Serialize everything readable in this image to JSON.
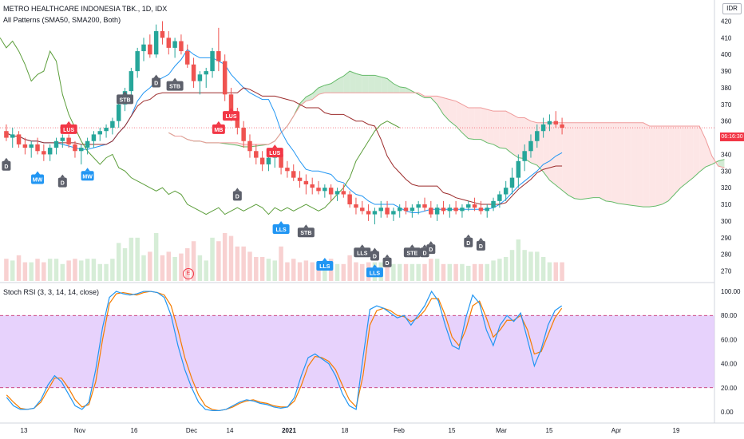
{
  "header": {
    "title": "METRO HEALTHCARE INDONESIA TBK., 1D, IDX",
    "indicator": "All Patterns (SMA50, SMA200, Both)",
    "rsi_title": "Stoch RSI (3, 3, 14, 14, close)"
  },
  "currency": "IDR",
  "last_price_label": "06:16:30",
  "earnings_label": "E",
  "colors": {
    "up": "#26a69a",
    "down": "#ef5350",
    "bg": "#ffffff",
    "cloud_bull": "#4caf50",
    "cloud_bear": "#f8b7b7",
    "tenkan": "#2196f3",
    "kijun": "#9c2b2b",
    "lagging": "#5c9e3b",
    "rsi_k": "#2196f3",
    "rsi_d": "#f57c00",
    "rsi_band": "#e1c7fb",
    "sig_bull": "#2196f3",
    "sig_bear": "#f23645",
    "sig_neutral": "#5d606b"
  },
  "chart_data": [
    {
      "type": "candlestick",
      "y_ticks": [
        270,
        280,
        290,
        300,
        310,
        320,
        330,
        340,
        350,
        360,
        370,
        380,
        390,
        400,
        410,
        420
      ],
      "ylim": [
        264,
        426
      ],
      "x_ticks": [
        "13",
        "Nov",
        "16",
        "Dec",
        "14",
        "2021",
        "18",
        "Feb",
        "15",
        "Mar",
        "15",
        "Apr",
        "19"
      ],
      "candles": [
        [
          354,
          358,
          348,
          350
        ],
        [
          350,
          356,
          344,
          352
        ],
        [
          352,
          354,
          344,
          346
        ],
        [
          346,
          350,
          340,
          344
        ],
        [
          344,
          348,
          338,
          346
        ],
        [
          346,
          350,
          340,
          342
        ],
        [
          342,
          346,
          336,
          340
        ],
        [
          340,
          346,
          336,
          344
        ],
        [
          344,
          350,
          340,
          348
        ],
        [
          348,
          352,
          344,
          350
        ],
        [
          350,
          352,
          344,
          346
        ],
        [
          346,
          348,
          338,
          342
        ],
        [
          342,
          346,
          334,
          344
        ],
        [
          344,
          350,
          340,
          348
        ],
        [
          348,
          354,
          344,
          352
        ],
        [
          352,
          356,
          348,
          354
        ],
        [
          354,
          358,
          350,
          356
        ],
        [
          356,
          362,
          352,
          360
        ],
        [
          360,
          372,
          356,
          370
        ],
        [
          370,
          380,
          366,
          378
        ],
        [
          378,
          392,
          374,
          390
        ],
        [
          390,
          404,
          386,
          402
        ],
        [
          402,
          410,
          396,
          406
        ],
        [
          406,
          412,
          398,
          400
        ],
        [
          400,
          418,
          398,
          414
        ],
        [
          414,
          420,
          406,
          410
        ],
        [
          410,
          414,
          400,
          404
        ],
        [
          404,
          410,
          398,
          408
        ],
        [
          408,
          412,
          400,
          402
        ],
        [
          402,
          406,
          392,
          394
        ],
        [
          394,
          398,
          380,
          384
        ],
        [
          384,
          390,
          376,
          388
        ],
        [
          388,
          392,
          380,
          390
        ],
        [
          390,
          404,
          386,
          402
        ],
        [
          402,
          416,
          390,
          396
        ],
        [
          396,
          400,
          372,
          376
        ],
        [
          376,
          380,
          360,
          364
        ],
        [
          364,
          368,
          352,
          356
        ],
        [
          356,
          360,
          344,
          348
        ],
        [
          348,
          352,
          338,
          342
        ],
        [
          342,
          346,
          334,
          338
        ],
        [
          338,
          342,
          330,
          334
        ],
        [
          334,
          340,
          330,
          338
        ],
        [
          338,
          344,
          332,
          340
        ],
        [
          340,
          344,
          328,
          332
        ],
        [
          332,
          336,
          326,
          330
        ],
        [
          330,
          334,
          324,
          326
        ],
        [
          326,
          330,
          320,
          324
        ],
        [
          324,
          328,
          316,
          322
        ],
        [
          322,
          326,
          316,
          320
        ],
        [
          320,
          324,
          316,
          318
        ],
        [
          318,
          322,
          314,
          320
        ],
        [
          320,
          322,
          312,
          316
        ],
        [
          316,
          320,
          312,
          318
        ],
        [
          318,
          322,
          314,
          316
        ],
        [
          316,
          318,
          308,
          310
        ],
        [
          310,
          314,
          304,
          308
        ],
        [
          308,
          312,
          304,
          306
        ],
        [
          306,
          310,
          300,
          304
        ],
        [
          304,
          308,
          298,
          306
        ],
        [
          306,
          312,
          302,
          308
        ],
        [
          308,
          312,
          302,
          304
        ],
        [
          304,
          308,
          300,
          306
        ],
        [
          306,
          310,
          302,
          308
        ],
        [
          308,
          312,
          304,
          306
        ],
        [
          306,
          310,
          302,
          308
        ],
        [
          308,
          312,
          304,
          310
        ],
        [
          310,
          314,
          306,
          308
        ],
        [
          308,
          312,
          302,
          304
        ],
        [
          304,
          310,
          300,
          308
        ],
        [
          308,
          312,
          304,
          306
        ],
        [
          306,
          310,
          302,
          308
        ],
        [
          308,
          312,
          304,
          306
        ],
        [
          306,
          310,
          302,
          308
        ],
        [
          308,
          312,
          306,
          310
        ],
        [
          310,
          314,
          306,
          308
        ],
        [
          308,
          312,
          304,
          306
        ],
        [
          306,
          310,
          302,
          308
        ],
        [
          308,
          314,
          306,
          312
        ],
        [
          312,
          318,
          308,
          316
        ],
        [
          316,
          324,
          312,
          320
        ],
        [
          320,
          332,
          316,
          326
        ],
        [
          326,
          340,
          320,
          336
        ],
        [
          336,
          346,
          330,
          342
        ],
        [
          342,
          352,
          338,
          348
        ],
        [
          348,
          358,
          344,
          354
        ],
        [
          354,
          362,
          350,
          358
        ],
        [
          358,
          364,
          354,
          360
        ],
        [
          360,
          366,
          356,
          358
        ],
        [
          358,
          362,
          352,
          356
        ]
      ],
      "signals": [
        {
          "label": "LUS",
          "kind": "bear",
          "i": 10,
          "price": 358
        },
        {
          "label": "D",
          "kind": "neutral",
          "i": 0,
          "price": 336
        },
        {
          "label": "MW",
          "kind": "bull",
          "i": 5,
          "price": 328
        },
        {
          "label": "D",
          "kind": "neutral",
          "i": 9,
          "price": 326
        },
        {
          "label": "MW",
          "kind": "bull",
          "i": 13,
          "price": 330
        },
        {
          "label": "STB",
          "kind": "neutral",
          "i": 19,
          "price": 376
        },
        {
          "label": "D",
          "kind": "neutral",
          "i": 24,
          "price": 386
        },
        {
          "label": "STB",
          "kind": "neutral",
          "i": 27,
          "price": 384
        },
        {
          "label": "LUS",
          "kind": "bear",
          "i": 36,
          "price": 366
        },
        {
          "label": "MB",
          "kind": "bear",
          "i": 34,
          "price": 358
        },
        {
          "label": "LUS",
          "kind": "bear",
          "i": 43,
          "price": 344
        },
        {
          "label": "D",
          "kind": "neutral",
          "i": 37,
          "price": 318
        },
        {
          "label": "LLS",
          "kind": "bull",
          "i": 44,
          "price": 298
        },
        {
          "label": "STB",
          "kind": "neutral",
          "i": 48,
          "price": 296
        },
        {
          "label": "LLS",
          "kind": "bull",
          "i": 51,
          "price": 276
        },
        {
          "label": "LLS",
          "kind": "neutral",
          "i": 57,
          "price": 284
        },
        {
          "label": "D",
          "kind": "neutral",
          "i": 59,
          "price": 282
        },
        {
          "label": "D",
          "kind": "neutral",
          "i": 61,
          "price": 278
        },
        {
          "label": "LLS",
          "kind": "bull",
          "i": 59,
          "price": 272
        },
        {
          "label": "STE",
          "kind": "neutral",
          "i": 65,
          "price": 284
        },
        {
          "label": "D",
          "kind": "neutral",
          "i": 67,
          "price": 284
        },
        {
          "label": "D",
          "kind": "neutral",
          "i": 68,
          "price": 286
        },
        {
          "label": "D",
          "kind": "neutral",
          "i": 74,
          "price": 290
        },
        {
          "label": "D",
          "kind": "neutral",
          "i": 76,
          "price": 288
        }
      ]
    },
    {
      "type": "line",
      "title": "Stoch RSI (3, 3, 14, 14, close)",
      "y_ticks": [
        "0.00",
        "20.00",
        "40.00",
        "60.00",
        "80.00",
        "100.00"
      ],
      "ylim": [
        -8,
        106
      ],
      "bands": [
        20,
        80
      ],
      "series": [
        {
          "values": [
            12,
            5,
            2,
            2,
            3,
            10,
            22,
            30,
            25,
            15,
            5,
            2,
            8,
            35,
            70,
            95,
            100,
            98,
            97,
            98,
            100,
            100,
            99,
            95,
            80,
            55,
            35,
            20,
            8,
            2,
            1,
            1,
            2,
            5,
            8,
            10,
            9,
            7,
            6,
            4,
            3,
            4,
            12,
            30,
            45,
            48,
            44,
            40,
            30,
            15,
            5,
            2,
            45,
            85,
            88,
            86,
            82,
            78,
            80,
            72,
            80,
            88,
            100,
            92,
            72,
            55,
            52,
            78,
            97,
            90,
            68,
            55,
            72,
            80,
            75,
            82,
            60,
            38,
            52,
            72,
            84,
            88
          ]
        },
        {
          "values": [
            14,
            8,
            3,
            2,
            3,
            8,
            18,
            28,
            28,
            20,
            10,
            4,
            6,
            25,
            60,
            90,
            98,
            99,
            98,
            97,
            99,
            100,
            99,
            97,
            88,
            68,
            45,
            28,
            14,
            5,
            2,
            1,
            2,
            4,
            7,
            9,
            10,
            8,
            7,
            5,
            4,
            4,
            9,
            22,
            38,
            46,
            45,
            42,
            35,
            22,
            10,
            4,
            30,
            72,
            84,
            86,
            84,
            80,
            79,
            75,
            78,
            84,
            94,
            94,
            80,
            62,
            55,
            68,
            88,
            92,
            78,
            62,
            68,
            76,
            76,
            80,
            68,
            48,
            50,
            64,
            78,
            86
          ]
        }
      ]
    }
  ]
}
